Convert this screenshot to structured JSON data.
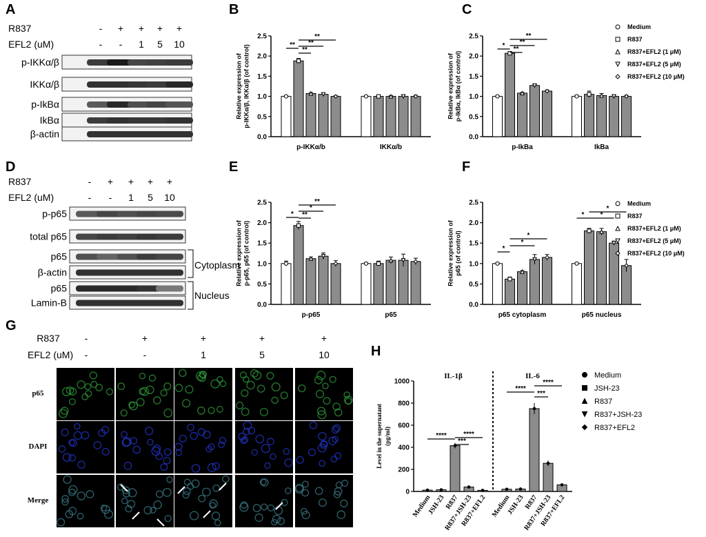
{
  "panel_letters": [
    "A",
    "B",
    "C",
    "D",
    "E",
    "F",
    "G",
    "H"
  ],
  "blot_A": {
    "r837_label": "R837",
    "efl2_label": "EFL2 (uM)",
    "r837_values": [
      "-",
      "+",
      "+",
      "+",
      "+"
    ],
    "efl2_values": [
      "-",
      "-",
      "1",
      "5",
      "10"
    ],
    "rows": [
      "p-IKKα/β",
      "IKKα/β",
      "p-IkBα",
      "IkBα",
      "β-actin"
    ]
  },
  "blot_D": {
    "r837_label": "R837",
    "efl2_label": "EFL2 (uM)",
    "r837_values": [
      "-",
      "+",
      "+",
      "+",
      "+"
    ],
    "efl2_values": [
      "-",
      "-",
      "1",
      "5",
      "10"
    ],
    "rows": [
      "p-p65",
      "total p65",
      "p65",
      "β-actin",
      "p65",
      "Lamin-B"
    ],
    "cytoplasm_label": "Cytoplasm",
    "nucleus_label": "Nucleus"
  },
  "legend_BC": [
    "Medium",
    "R837",
    "R837+EFL2 (1 μM)",
    "R837+EFL2 (5 μM)",
    "R837+EFL2 (10 μM)"
  ],
  "legend_EF": [
    "Medium",
    "R837",
    "R837+EFL2 (1 μM)",
    "R837+EFL2 (5 μM)",
    "R837+EFL2 (10 μM)"
  ],
  "legend_H": [
    "Medium",
    "JSH-23",
    "R837",
    "R837+JSH-23",
    "R837+EFL2"
  ],
  "micro_G": {
    "r837_label": "R837",
    "efl2_label": "EFL2 (uM)",
    "r837_values": [
      "-",
      "+",
      "+",
      "+",
      "+"
    ],
    "efl2_values": [
      "-",
      "-",
      "1",
      "5",
      "10"
    ],
    "row_labels": [
      "p65",
      "DAPI",
      "Merge"
    ],
    "row_label_colors": [
      "#2aa22a",
      "#1f5fd0",
      "#222222"
    ]
  },
  "chart_data": [
    {
      "panel": "B",
      "type": "bar",
      "ylabel": "Relative expression of\np-IKKα/β, IKKα/β (of control)",
      "ylim": [
        0,
        2.5
      ],
      "yticks": [
        "0.0",
        "0.5",
        "1.0",
        "1.5",
        "2.0",
        "2.5"
      ],
      "groups": [
        "p-IKKα/b",
        "IKKα/b"
      ],
      "series_names": [
        "Medium",
        "R837",
        "R837+EFL2 (1 μM)",
        "R837+EFL2 (5 μM)",
        "R837+EFL2 (10 μM)"
      ],
      "values": [
        [
          1.0,
          1.88,
          1.07,
          1.05,
          1.0
        ],
        [
          1.0,
          1.0,
          1.0,
          1.0,
          1.0
        ]
      ],
      "errors": [
        [
          0.02,
          0.06,
          0.03,
          0.04,
          0.02
        ],
        [
          0.02,
          0.02,
          0.02,
          0.03,
          0.03
        ]
      ],
      "sig": [
        "**",
        "**",
        "**",
        "**"
      ]
    },
    {
      "panel": "C",
      "type": "bar",
      "ylabel": "Relative expression of\np-IkBα, IkBα (of control)",
      "ylim": [
        0,
        2.5
      ],
      "yticks": [
        "0.0",
        "0.5",
        "1.0",
        "1.5",
        "2.0",
        "2.5"
      ],
      "groups": [
        "p-IkBa",
        "IkBa"
      ],
      "series_names": [
        "Medium",
        "R837",
        "R837+EFL2 (1 μM)",
        "R837+EFL2 (5 μM)",
        "R837+EFL2 (10 μM)"
      ],
      "values": [
        [
          1.0,
          2.07,
          1.08,
          1.27,
          1.13
        ],
        [
          1.0,
          1.05,
          1.02,
          1.0,
          1.0
        ]
      ],
      "errors": [
        [
          0.02,
          0.02,
          0.02,
          0.02,
          0.03
        ],
        [
          0.03,
          0.08,
          0.05,
          0.03,
          0.03
        ]
      ],
      "sig": [
        "*",
        "**",
        "**",
        "**"
      ]
    },
    {
      "panel": "E",
      "type": "bar",
      "ylabel": "Relative expression of\np-p65, p65 (of control)",
      "ylim": [
        0,
        2.5
      ],
      "yticks": [
        "0.0",
        "0.5",
        "1.0",
        "1.5",
        "2.0",
        "2.5"
      ],
      "groups": [
        "p-p65",
        "p65"
      ],
      "series_names": [
        "Medium",
        "R837",
        "R837+EFL2 (1 μM)",
        "R837+EFL2 (5 μM)",
        "R837+EFL2 (10 μM)"
      ],
      "values": [
        [
          1.0,
          1.93,
          1.12,
          1.18,
          1.0
        ],
        [
          1.0,
          1.0,
          1.08,
          1.08,
          1.05
        ]
      ],
      "errors": [
        [
          0.06,
          0.1,
          0.04,
          0.08,
          0.07
        ],
        [
          0.02,
          0.06,
          0.08,
          0.15,
          0.08
        ]
      ],
      "sig": [
        "*",
        "**",
        "*",
        "**"
      ]
    },
    {
      "panel": "F",
      "type": "bar",
      "ylabel": "Relative expression of\np65 (of control)",
      "ylim": [
        0,
        2.5
      ],
      "yticks": [
        "0.0",
        "0.5",
        "1.0",
        "1.5",
        "2.0",
        "2.5"
      ],
      "groups": [
        "p65 cytoplasm",
        "p65 nucleus"
      ],
      "series_names": [
        "Medium",
        "R837",
        "R837+EFL2 (1 μM)",
        "R837+EFL2 (5 μM)",
        "R837+EFL2 (10 μM)"
      ],
      "values": [
        [
          1.0,
          0.62,
          0.8,
          1.1,
          1.15
        ],
        [
          1.0,
          1.8,
          1.78,
          1.5,
          0.95
        ]
      ],
      "errors": [
        [
          0.02,
          0.05,
          0.03,
          0.12,
          0.07
        ],
        [
          0.02,
          0.06,
          0.08,
          0.05,
          0.15
        ]
      ],
      "sig": [
        "*",
        "*",
        "*",
        "*",
        "*",
        "*"
      ]
    },
    {
      "panel": "H",
      "type": "bar",
      "ylabel": "Level in the supernatant\n(pg/ml)",
      "ylim": [
        0,
        1000
      ],
      "yticks": [
        "0",
        "200",
        "400",
        "600",
        "800",
        "1000"
      ],
      "groups": [
        "IL-1β",
        "IL-6"
      ],
      "categories": [
        "Medium",
        "JSH-23",
        "R837",
        "R837+JSH-23",
        "R837+EFL2"
      ],
      "values": [
        [
          12,
          15,
          415,
          40,
          10
        ],
        [
          20,
          22,
          750,
          255,
          60
        ]
      ],
      "errors": [
        [
          3,
          3,
          25,
          6,
          3
        ],
        [
          3,
          3,
          50,
          25,
          4
        ]
      ],
      "sig": [
        "****",
        "***",
        "****",
        "****",
        "***",
        "****"
      ]
    }
  ]
}
